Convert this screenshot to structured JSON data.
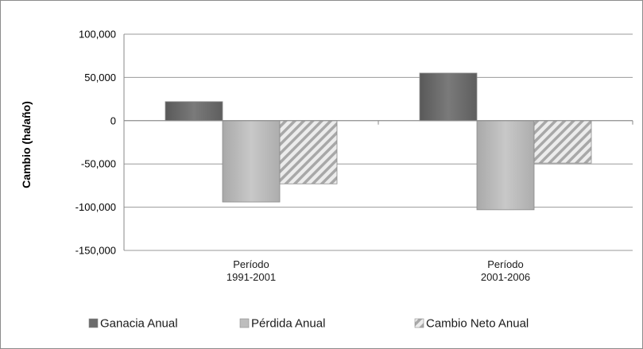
{
  "chart_data": {
    "type": "bar",
    "ylabel": "Cambio (ha/año)",
    "xlabel": "",
    "ylim": [
      -150000,
      100000
    ],
    "yticks": [
      100000,
      50000,
      0,
      -50000,
      -100000,
      -150000
    ],
    "ytick_labels": [
      "100,000",
      "50,000",
      "0",
      "-50,000",
      "-100,000",
      "-150,000"
    ],
    "categories": [
      [
        "Período",
        "1991-2001"
      ],
      [
        "Período",
        "2001-2006"
      ]
    ],
    "series": [
      {
        "name": "Ganacia Anual",
        "values": [
          22000,
          55000
        ],
        "color": "#6b6b6b",
        "pattern": "solid-dark"
      },
      {
        "name": "Pérdida Anual",
        "values": [
          -94000,
          -103000
        ],
        "color": "#b9b9b9",
        "pattern": "solid-light"
      },
      {
        "name": "Cambio Neto Anual",
        "values": [
          -73000,
          -49000
        ],
        "color": "#d9d9d9",
        "pattern": "hatch"
      }
    ],
    "grid": true,
    "legend_position": "bottom"
  }
}
